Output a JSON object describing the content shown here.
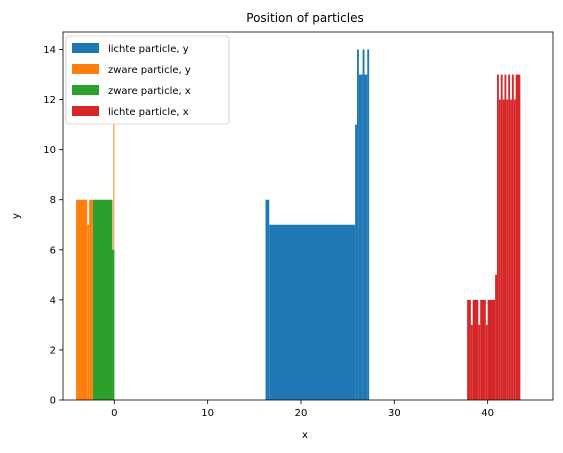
{
  "chart_data": {
    "type": "bar",
    "title": "Position of particles",
    "xlabel": "x",
    "ylabel": "y",
    "xlim": [
      -5.5,
      47
    ],
    "ylim": [
      0,
      14.7
    ],
    "xticks": [
      0,
      10,
      20,
      30,
      40
    ],
    "yticks": [
      0,
      2,
      4,
      6,
      8,
      10,
      12,
      14
    ],
    "grid": false,
    "legend_position": "top-left",
    "series": [
      {
        "name": "lichte particle, y",
        "color": "#1f77b4",
        "bins": [
          [
            16.2,
            16.6,
            8
          ],
          [
            16.6,
            25.8,
            7
          ],
          [
            25.8,
            26.0,
            11
          ],
          [
            26.0,
            26.2,
            14
          ],
          [
            26.2,
            26.6,
            13
          ],
          [
            26.6,
            26.8,
            14
          ],
          [
            26.8,
            27.1,
            13
          ],
          [
            27.1,
            27.3,
            14
          ]
        ]
      },
      {
        "name": "zware particle, y",
        "color": "#ff7f0e",
        "bins": [
          [
            -4.1,
            -2.9,
            8
          ],
          [
            -2.9,
            -2.7,
            7
          ],
          [
            -2.7,
            -2.3,
            8
          ],
          [
            -0.1,
            0.0,
            11
          ]
        ]
      },
      {
        "name": "zware particle, x",
        "color": "#2ca02c",
        "bins": [
          [
            -2.3,
            -0.2,
            8
          ],
          [
            -0.2,
            0.0,
            6
          ]
        ]
      },
      {
        "name": "lichte particle, x",
        "color": "#d62728",
        "bins": [
          [
            37.8,
            38.2,
            4
          ],
          [
            38.2,
            38.4,
            3
          ],
          [
            38.4,
            39.0,
            4
          ],
          [
            39.0,
            39.2,
            3
          ],
          [
            39.2,
            39.8,
            4
          ],
          [
            39.8,
            40.0,
            3
          ],
          [
            40.0,
            40.8,
            4
          ],
          [
            40.8,
            41.0,
            5
          ],
          [
            41.0,
            41.2,
            13
          ],
          [
            41.2,
            41.4,
            12
          ],
          [
            41.4,
            41.6,
            13
          ],
          [
            41.6,
            41.8,
            12
          ],
          [
            41.8,
            42.0,
            13
          ],
          [
            42.0,
            42.2,
            12
          ],
          [
            42.2,
            42.4,
            13
          ],
          [
            42.4,
            42.6,
            12
          ],
          [
            42.6,
            42.8,
            13
          ],
          [
            42.8,
            43.0,
            12
          ],
          [
            43.0,
            43.5,
            13
          ]
        ]
      }
    ]
  }
}
